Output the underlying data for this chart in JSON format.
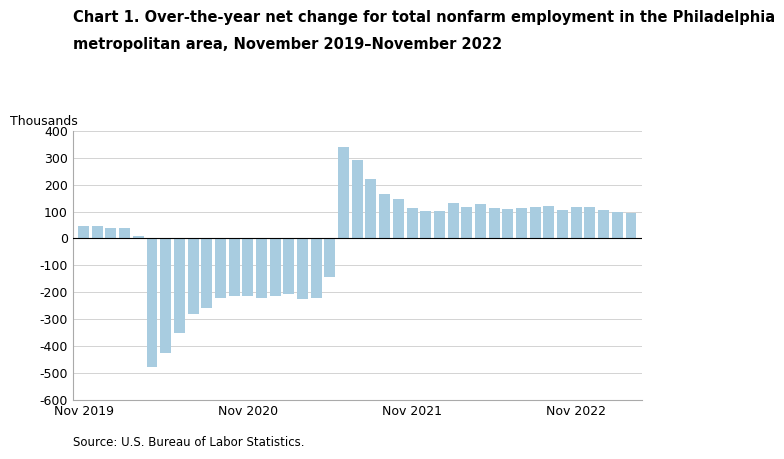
{
  "title_line1": "Chart 1. Over-the-year net change for total nonfarm employment in the Philadelphia",
  "title_line2": "metropolitan area, November 2019–November 2022",
  "ylabel": "Thousands",
  "source": "Source: U.S. Bureau of Labor Statistics.",
  "bar_color": "#a8cce0",
  "ylim": [
    -600,
    400
  ],
  "yticks": [
    -600,
    -500,
    -400,
    -300,
    -200,
    -100,
    0,
    100,
    200,
    300,
    400
  ],
  "values": [
    45,
    45,
    40,
    40,
    10,
    -480,
    -425,
    -350,
    -280,
    -260,
    -220,
    -215,
    -215,
    -220,
    -215,
    -205,
    -225,
    -220,
    -145,
    340,
    290,
    220,
    165,
    145,
    115,
    103,
    103,
    130,
    118,
    127,
    112,
    110,
    112,
    118,
    120,
    105,
    118,
    118,
    107,
    100,
    93
  ],
  "xtick_indices": [
    0,
    12,
    24,
    36
  ],
  "x_tick_labels": [
    "Nov 2019",
    "Nov 2020",
    "Nov 2021",
    "Nov 2022"
  ],
  "background_color": "#ffffff",
  "title_fontsize": 10.5,
  "source_fontsize": 8.5,
  "tick_fontsize": 9
}
